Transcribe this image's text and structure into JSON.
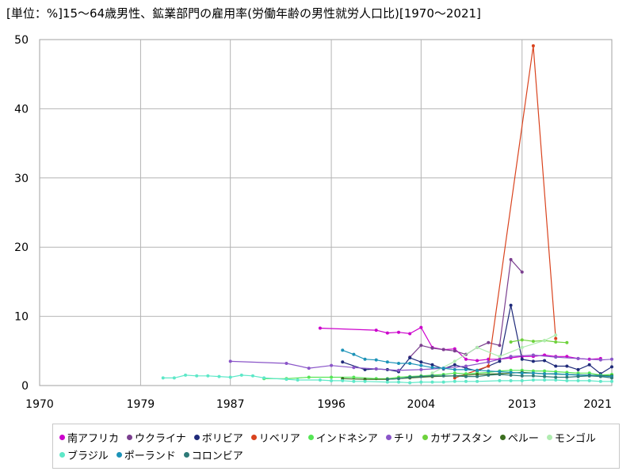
{
  "chart_data": {
    "type": "line",
    "title": "[単位：%]15～64歳男性、鉱業部門の雇用率(労働年齢の男性就労人口比)[1970～2021]",
    "xlim": [
      1970,
      2021
    ],
    "ylim": [
      0,
      50
    ],
    "x_ticks": [
      "1970",
      "1979",
      "1987",
      "1996",
      "2004",
      "2013",
      "2021"
    ],
    "y_ticks": [
      "0",
      "10",
      "20",
      "30",
      "40",
      "50"
    ],
    "grid": true,
    "legend_position": "bottom",
    "series": [
      {
        "name": "南アフリカ",
        "color": "#cc00cc",
        "x": [
          1995,
          2000,
          2001,
          2002,
          2003,
          2004,
          2005,
          2006,
          2007,
          2008,
          2009,
          2010,
          2011,
          2012,
          2013,
          2014,
          2015,
          2016,
          2017,
          2018,
          2019,
          2020
        ],
        "y": [
          8.3,
          8.0,
          7.6,
          7.7,
          7.5,
          8.4,
          5.5,
          5.2,
          5.3,
          3.8,
          3.6,
          3.8,
          3.8,
          4.0,
          4.2,
          4.2,
          4.4,
          4.2,
          4.2,
          3.9,
          3.8,
          3.9
        ]
      },
      {
        "name": "ウクライナ",
        "color": "#7b3f8f",
        "x": [
          2003,
          2004,
          2005,
          2006,
          2007,
          2008,
          2009,
          2010,
          2011,
          2012,
          2013
        ],
        "y": [
          4.1,
          5.8,
          5.4,
          5.2,
          5.0,
          4.5,
          5.5,
          6.2,
          5.8,
          18.2,
          16.4
        ]
      },
      {
        "name": "ボリビア",
        "color": "#1f2a7a",
        "x": [
          1997,
          1999,
          2000,
          2001,
          2002,
          2003,
          2004,
          2005,
          2006,
          2007,
          2008,
          2009,
          2010,
          2011,
          2012,
          2013,
          2014,
          2015,
          2016,
          2017,
          2018,
          2019,
          2020,
          2021
        ],
        "y": [
          3.4,
          2.3,
          2.4,
          2.3,
          2.0,
          4.0,
          3.4,
          3.0,
          2.4,
          3.0,
          2.5,
          2.1,
          2.8,
          3.5,
          11.6,
          3.8,
          3.5,
          3.6,
          2.8,
          2.8,
          2.3,
          3.0,
          1.7,
          2.7
        ]
      },
      {
        "name": "リベリア",
        "color": "#d9431e",
        "x": [
          2007,
          2010,
          2014,
          2016
        ],
        "y": [
          1.1,
          2.8,
          49.1,
          6.8
        ]
      },
      {
        "name": "インドネシア",
        "color": "#55e655",
        "x": [
          1990,
          1992,
          1994,
          1996,
          1998,
          2000,
          2001,
          2002,
          2003,
          2004,
          2005,
          2006,
          2007,
          2008,
          2009,
          2010,
          2011,
          2012,
          2013,
          2014,
          2015,
          2016,
          2017,
          2018,
          2019,
          2020,
          2021
        ],
        "y": [
          1.0,
          1.0,
          1.2,
          1.2,
          1.2,
          1.0,
          1.0,
          1.2,
          1.3,
          1.4,
          1.5,
          1.6,
          1.8,
          1.7,
          1.8,
          1.9,
          2.1,
          2.2,
          2.2,
          2.1,
          2.1,
          2.0,
          1.9,
          1.8,
          1.8,
          1.5,
          1.6
        ]
      },
      {
        "name": "チリ",
        "color": "#8a55c8",
        "x": [
          1987,
          1992,
          1994,
          1996,
          1998,
          2000,
          2002,
          2004,
          2006,
          2008,
          2010,
          2012,
          2014,
          2016,
          2018,
          2020,
          2021
        ],
        "y": [
          3.5,
          3.2,
          2.5,
          2.9,
          2.6,
          2.4,
          2.2,
          2.3,
          2.5,
          2.8,
          3.4,
          4.2,
          4.4,
          4.1,
          3.9,
          3.7,
          3.8
        ]
      },
      {
        "name": "カザフスタン",
        "color": "#6ed23c",
        "x": [
          2012,
          2013,
          2014,
          2015,
          2016,
          2017
        ],
        "y": [
          6.3,
          6.6,
          6.4,
          6.5,
          6.3,
          6.2
        ]
      },
      {
        "name": "ペルー",
        "color": "#3b6e1e",
        "x": [
          1997,
          1999,
          2001,
          2003,
          2005,
          2007,
          2009,
          2011,
          2013,
          2015,
          2017,
          2019,
          2021
        ],
        "y": [
          1.0,
          0.9,
          0.9,
          1.1,
          1.3,
          1.4,
          1.6,
          1.7,
          1.9,
          1.7,
          1.6,
          1.5,
          1.4
        ]
      },
      {
        "name": "モンゴル",
        "color": "#b0ecb0",
        "x": [
          2005,
          2007,
          2009,
          2011,
          2013,
          2015,
          2016
        ],
        "y": [
          1.8,
          3.5,
          5.5,
          4.2,
          5.5,
          6.5,
          7.3
        ]
      },
      {
        "name": "ブラジル",
        "color": "#5ee8c8",
        "x": [
          1981,
          1982,
          1983,
          1984,
          1985,
          1986,
          1987,
          1988,
          1989,
          1990,
          1992,
          1993,
          1995,
          1996,
          1997,
          1998,
          1999,
          2001,
          2002,
          2003,
          2004,
          2005,
          2006,
          2007,
          2008,
          2009,
          2011,
          2012,
          2013,
          2014,
          2015,
          2016,
          2017,
          2018,
          2019,
          2020,
          2021
        ],
        "y": [
          1.1,
          1.1,
          1.5,
          1.4,
          1.4,
          1.3,
          1.2,
          1.5,
          1.4,
          1.1,
          0.9,
          0.8,
          0.8,
          0.7,
          0.7,
          0.6,
          0.6,
          0.5,
          0.5,
          0.4,
          0.5,
          0.5,
          0.5,
          0.6,
          0.6,
          0.6,
          0.7,
          0.7,
          0.7,
          0.8,
          0.8,
          0.8,
          0.7,
          0.7,
          0.7,
          0.6,
          0.6
        ]
      },
      {
        "name": "ポーランド",
        "color": "#1c93b8",
        "x": [
          1997,
          1998,
          1999,
          2000,
          2001,
          2002,
          2003,
          2004,
          2005,
          2006,
          2007,
          2008,
          2009,
          2010,
          2011,
          2012,
          2013,
          2014,
          2015,
          2016,
          2017,
          2018,
          2019,
          2020,
          2021
        ],
        "y": [
          5.1,
          4.5,
          3.8,
          3.7,
          3.4,
          3.2,
          3.2,
          2.9,
          2.6,
          2.5,
          2.3,
          2.3,
          2.2,
          2.1,
          2.0,
          1.9,
          1.8,
          1.8,
          1.7,
          1.7,
          1.6,
          1.5,
          1.5,
          1.4,
          1.3
        ]
      },
      {
        "name": "コロンビア",
        "color": "#2e7a78",
        "x": [
          2001,
          2002,
          2003,
          2004,
          2005,
          2006,
          2007,
          2008,
          2009,
          2010,
          2011,
          2012,
          2013,
          2014,
          2015,
          2016,
          2017,
          2018,
          2019,
          2020,
          2021
        ],
        "y": [
          0.9,
          1.0,
          1.2,
          1.3,
          1.4,
          1.4,
          1.4,
          1.3,
          1.3,
          1.5,
          1.6,
          1.5,
          1.4,
          1.4,
          1.3,
          1.2,
          1.2,
          1.3,
          1.4,
          1.3,
          1.1
        ]
      }
    ]
  }
}
